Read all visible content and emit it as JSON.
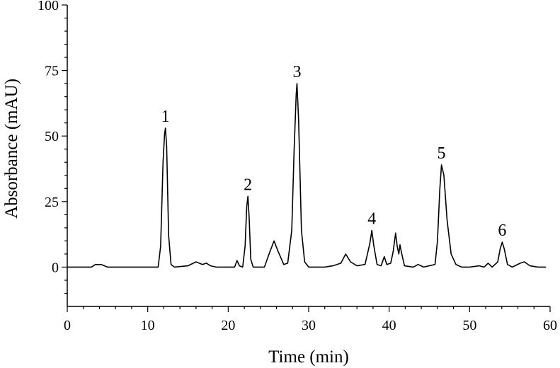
{
  "chart_data": {
    "type": "line",
    "xlabel": "Time (min)",
    "ylabel": "Absorbance (mAU)",
    "xlim": [
      0,
      60
    ],
    "ylim": [
      -15,
      100
    ],
    "x_ticks": [
      0,
      10,
      20,
      30,
      40,
      50,
      60
    ],
    "y_ticks": [
      0,
      25,
      50,
      75,
      100
    ],
    "grid": false,
    "line_color": "#000000",
    "series": [
      {
        "points": [
          [
            0,
            0
          ],
          [
            3,
            0
          ],
          [
            3.5,
            1
          ],
          [
            4.3,
            0.9
          ],
          [
            5,
            0
          ],
          [
            11.3,
            0
          ],
          [
            11.6,
            8
          ],
          [
            11.9,
            40
          ],
          [
            12.1,
            51
          ],
          [
            12.2,
            53
          ],
          [
            12.35,
            46
          ],
          [
            12.6,
            12
          ],
          [
            12.9,
            1
          ],
          [
            13.3,
            0
          ],
          [
            15,
            0.5
          ],
          [
            16,
            2
          ],
          [
            16.8,
            1
          ],
          [
            17.3,
            1.5
          ],
          [
            17.8,
            0.5
          ],
          [
            18.5,
            0
          ],
          [
            20.8,
            0
          ],
          [
            21.1,
            2.5
          ],
          [
            21.4,
            0.5
          ],
          [
            21.8,
            0
          ],
          [
            22.1,
            8
          ],
          [
            22.3,
            23
          ],
          [
            22.45,
            27
          ],
          [
            22.6,
            19
          ],
          [
            22.8,
            3
          ],
          [
            23.1,
            0
          ],
          [
            24.5,
            0
          ],
          [
            25.2,
            6
          ],
          [
            25.7,
            10
          ],
          [
            26.2,
            6
          ],
          [
            26.9,
            1
          ],
          [
            27.4,
            1.5
          ],
          [
            27.9,
            14
          ],
          [
            28.2,
            45
          ],
          [
            28.45,
            66
          ],
          [
            28.55,
            70
          ],
          [
            28.75,
            56
          ],
          [
            29.1,
            14
          ],
          [
            29.5,
            2
          ],
          [
            30,
            0
          ],
          [
            32,
            0
          ],
          [
            33,
            0.5
          ],
          [
            34,
            1.5
          ],
          [
            34.6,
            5
          ],
          [
            35.2,
            2
          ],
          [
            36,
            0.5
          ],
          [
            37,
            1
          ],
          [
            37.6,
            9
          ],
          [
            37.85,
            14
          ],
          [
            38.1,
            8
          ],
          [
            38.5,
            1
          ],
          [
            39,
            0.5
          ],
          [
            39.4,
            4
          ],
          [
            39.7,
            1
          ],
          [
            40.2,
            1.5
          ],
          [
            40.5,
            6
          ],
          [
            40.8,
            13
          ],
          [
            41,
            8
          ],
          [
            41.2,
            5
          ],
          [
            41.35,
            8.5
          ],
          [
            41.5,
            6
          ],
          [
            41.9,
            0.5
          ],
          [
            43,
            0
          ],
          [
            43.6,
            1
          ],
          [
            44.3,
            0
          ],
          [
            45.7,
            1
          ],
          [
            46,
            10
          ],
          [
            46.3,
            30
          ],
          [
            46.5,
            39
          ],
          [
            46.8,
            35
          ],
          [
            47.2,
            18
          ],
          [
            47.7,
            5
          ],
          [
            48.3,
            1
          ],
          [
            49,
            0
          ],
          [
            50,
            0
          ],
          [
            51.2,
            0.5
          ],
          [
            51.8,
            0
          ],
          [
            52.3,
            1.5
          ],
          [
            52.8,
            0
          ],
          [
            53.5,
            2
          ],
          [
            53.8,
            7
          ],
          [
            54.05,
            9.5
          ],
          [
            54.3,
            7
          ],
          [
            54.7,
            1
          ],
          [
            55.3,
            0
          ],
          [
            56.3,
            1.5
          ],
          [
            56.8,
            2
          ],
          [
            57.5,
            0.5
          ],
          [
            58.5,
            0
          ],
          [
            59.5,
            0
          ]
        ]
      }
    ],
    "annotations": [
      {
        "text": "1",
        "x": 12.2,
        "y": 53
      },
      {
        "text": "2",
        "x": 22.45,
        "y": 27
      },
      {
        "text": "3",
        "x": 28.55,
        "y": 70
      },
      {
        "text": "4",
        "x": 37.85,
        "y": 14
      },
      {
        "text": "5",
        "x": 46.5,
        "y": 39
      },
      {
        "text": "6",
        "x": 54.05,
        "y": 9.5
      }
    ]
  }
}
